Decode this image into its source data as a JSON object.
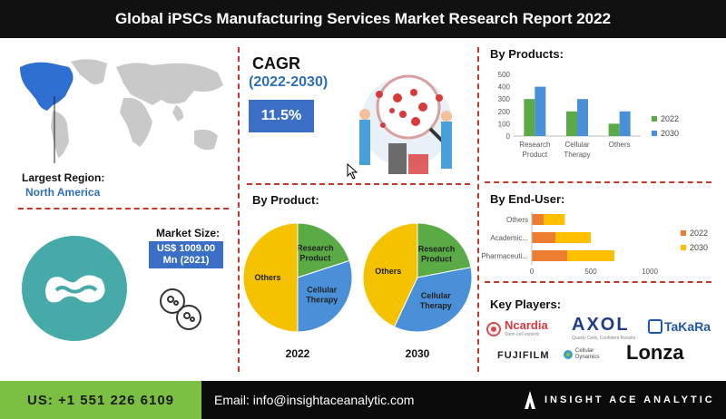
{
  "title": "Global iPSCs Manufacturing Services Market Research Report 2022",
  "largest_region": {
    "label": "Largest Region:",
    "value": "North America"
  },
  "market_size": {
    "label": "Market Size:",
    "value_line1": "US$ 1009.00",
    "value_line2": "Mn (2021)"
  },
  "cagr": {
    "label": "CAGR",
    "period": "(2022-2030)",
    "value": "11.5%"
  },
  "by_product": {
    "title": "By Product:",
    "charts": [
      {
        "year": "2022",
        "slices": [
          {
            "label": "Research Product",
            "line1": "Research",
            "line2": "Product",
            "value": 20,
            "color": "#5aaa46"
          },
          {
            "label": "Cellular Therapy",
            "line1": "Cellular",
            "line2": "Therapy",
            "value": 30,
            "color": "#4a90d9"
          },
          {
            "label": "Others",
            "line1": "Others",
            "line2": "",
            "value": 50,
            "color": "#f5c200"
          }
        ]
      },
      {
        "year": "2030",
        "slices": [
          {
            "label": "Research Product",
            "line1": "Research",
            "line2": "Product",
            "value": 22,
            "color": "#5aaa46"
          },
          {
            "label": "Cellular Therapy",
            "line1": "Cellular",
            "line2": "Therapy",
            "value": 35,
            "color": "#4a90d9"
          },
          {
            "label": "Others",
            "line1": "Others",
            "line2": "",
            "value": 43,
            "color": "#f5c200"
          }
        ]
      }
    ]
  },
  "chart_data": [
    {
      "type": "bar",
      "title": "By Products:",
      "categories": [
        "Research Product",
        "Cellular Therapy",
        "Others"
      ],
      "category_lines": [
        [
          "Research",
          "Product"
        ],
        [
          "Cellular",
          "Therapy"
        ],
        [
          "Others"
        ]
      ],
      "series": [
        {
          "name": "2022",
          "values": [
            300,
            200,
            100
          ],
          "color": "#5aaa46"
        },
        {
          "name": "2030",
          "values": [
            400,
            300,
            200
          ],
          "color": "#4a90d9"
        }
      ],
      "ylim": [
        0,
        500
      ],
      "yticks": [
        "0",
        "100",
        "200",
        "300",
        "400",
        "500"
      ],
      "legend": "right"
    },
    {
      "type": "bar",
      "orientation": "horizontal",
      "stacked": true,
      "title": "By End-User:",
      "categories": [
        "Others",
        "Academic...",
        "Pharmaceuti..."
      ],
      "series": [
        {
          "name": "2022",
          "values": [
            100,
            200,
            300
          ],
          "color": "#ed7d31"
        },
        {
          "name": "2030",
          "values": [
            180,
            300,
            400
          ],
          "color": "#ffc000"
        }
      ],
      "xlim": [
        0,
        1000
      ],
      "xticks": [
        "0",
        "500",
        "1000"
      ],
      "legend": "right"
    }
  ],
  "key_players": {
    "title": "Key Players:",
    "logos": [
      "Ncardia",
      "AXOL",
      "TaKaRa",
      "FUJIFILM",
      "Cellular Dynamics",
      "Lonza"
    ],
    "ncardia_tag": "Stem cell experts",
    "axol_tag": "Quality Cells, Confident Results"
  },
  "footer": {
    "phone": "US: +1 551 226 6109",
    "email": "Email: info@insightaceanalytic.com",
    "brand": "INSIGHT ACE ANALYTIC"
  }
}
